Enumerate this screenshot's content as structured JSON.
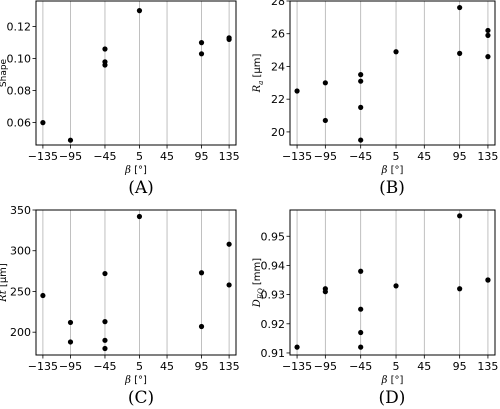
{
  "figure": {
    "panels": [
      "(A)",
      "(B)",
      "(C)",
      "(D)"
    ]
  },
  "chart_data": [
    {
      "type": "scatter",
      "panel_label": "(A)",
      "xlabel_symbol": "β",
      "xlabel_unit": " [°]",
      "ylabel_symbol": "",
      "ylabel_text": "Shape",
      "ylabel_unit": "",
      "ylabel_italic": false,
      "xticks": [
        -135,
        -95,
        -45,
        5,
        45,
        95,
        135
      ],
      "xtick_labels": [
        "−135",
        "−95",
        "−45",
        "5",
        "45",
        "95",
        "135"
      ],
      "xlim": [
        -145,
        145
      ],
      "ylim": [
        0.046,
        0.136
      ],
      "yticks": [
        0.06,
        0.08,
        0.1,
        0.12
      ],
      "ytick_labels": [
        "0.06",
        "0.08",
        "0.10",
        "0.12"
      ],
      "grid": "vertical",
      "points": [
        {
          "x": -135,
          "y": 0.06
        },
        {
          "x": -95,
          "y": 0.049
        },
        {
          "x": -45,
          "y": 0.106
        },
        {
          "x": -45,
          "y": 0.098
        },
        {
          "x": -45,
          "y": 0.096
        },
        {
          "x": 5,
          "y": 0.13
        },
        {
          "x": 95,
          "y": 0.11
        },
        {
          "x": 95,
          "y": 0.103
        },
        {
          "x": 135,
          "y": 0.113
        },
        {
          "x": 135,
          "y": 0.112
        }
      ]
    },
    {
      "type": "scatter",
      "panel_label": "(B)",
      "xlabel_symbol": "β",
      "xlabel_unit": " [°]",
      "ylabel_symbol": "R",
      "ylabel_sub": "a",
      "ylabel_text": "",
      "ylabel_unit": " [μm]",
      "ylabel_italic": true,
      "xticks": [
        -135,
        -95,
        -45,
        5,
        45,
        95,
        135
      ],
      "xtick_labels": [
        "−135",
        "−95",
        "−45",
        "5",
        "45",
        "95",
        "135"
      ],
      "xlim": [
        -145,
        145
      ],
      "ylim": [
        19.2,
        28.0
      ],
      "yticks": [
        20,
        22,
        24,
        26,
        28
      ],
      "ytick_labels": [
        "20",
        "22",
        "24",
        "26",
        "28"
      ],
      "grid": "vertical",
      "points": [
        {
          "x": -135,
          "y": 22.5
        },
        {
          "x": -95,
          "y": 23.0
        },
        {
          "x": -95,
          "y": 20.7
        },
        {
          "x": -45,
          "y": 23.5
        },
        {
          "x": -45,
          "y": 23.1
        },
        {
          "x": -45,
          "y": 21.5
        },
        {
          "x": -45,
          "y": 19.5
        },
        {
          "x": 5,
          "y": 24.9
        },
        {
          "x": 95,
          "y": 27.6
        },
        {
          "x": 95,
          "y": 24.8
        },
        {
          "x": 135,
          "y": 26.2
        },
        {
          "x": 135,
          "y": 25.9
        },
        {
          "x": 135,
          "y": 24.6
        }
      ]
    },
    {
      "type": "scatter",
      "panel_label": "(C)",
      "xlabel_symbol": "β",
      "xlabel_unit": " [°]",
      "ylabel_symbol": "Rt",
      "ylabel_sub": "",
      "ylabel_text": "",
      "ylabel_unit": " [μm]",
      "ylabel_italic": true,
      "xticks": [
        -135,
        -95,
        -45,
        5,
        45,
        95,
        135
      ],
      "xtick_labels": [
        "−135",
        "−95",
        "−45",
        "5",
        "45",
        "95",
        "135"
      ],
      "xlim": [
        -145,
        145
      ],
      "ylim": [
        172,
        350
      ],
      "yticks": [
        200,
        250,
        300,
        350
      ],
      "ytick_labels": [
        "200",
        "250",
        "300",
        "350"
      ],
      "grid": "vertical",
      "points": [
        {
          "x": -135,
          "y": 245
        },
        {
          "x": -95,
          "y": 212
        },
        {
          "x": -95,
          "y": 188
        },
        {
          "x": -45,
          "y": 272
        },
        {
          "x": -45,
          "y": 213
        },
        {
          "x": -45,
          "y": 190
        },
        {
          "x": -45,
          "y": 180
        },
        {
          "x": 5,
          "y": 342
        },
        {
          "x": 95,
          "y": 273
        },
        {
          "x": 95,
          "y": 207
        },
        {
          "x": 135,
          "y": 308
        },
        {
          "x": 135,
          "y": 258
        }
      ]
    },
    {
      "type": "scatter",
      "panel_label": "(D)",
      "xlabel_symbol": "β",
      "xlabel_unit": " [°]",
      "ylabel_symbol": "D",
      "ylabel_sub": "EQ",
      "ylabel_text": "",
      "ylabel_unit": " [mm]",
      "ylabel_italic": true,
      "xticks": [
        -135,
        -95,
        -45,
        5,
        45,
        95,
        135
      ],
      "xtick_labels": [
        "−135",
        "−95",
        "−45",
        "5",
        "45",
        "95",
        "135"
      ],
      "xlim": [
        -145,
        145
      ],
      "ylim": [
        0.9093,
        0.959
      ],
      "yticks": [
        0.91,
        0.92,
        0.93,
        0.94,
        0.95
      ],
      "ytick_labels": [
        "0.91",
        "0.92",
        "0.93",
        "0.94",
        "0.95"
      ],
      "grid": "vertical",
      "points": [
        {
          "x": -135,
          "y": 0.912
        },
        {
          "x": -95,
          "y": 0.932
        },
        {
          "x": -95,
          "y": 0.931
        },
        {
          "x": -45,
          "y": 0.938
        },
        {
          "x": -45,
          "y": 0.925
        },
        {
          "x": -45,
          "y": 0.917
        },
        {
          "x": -45,
          "y": 0.912
        },
        {
          "x": 5,
          "y": 0.933
        },
        {
          "x": 95,
          "y": 0.957
        },
        {
          "x": 95,
          "y": 0.932
        },
        {
          "x": 135,
          "y": 0.935
        },
        {
          "x": 135,
          "y": 0.935
        }
      ]
    }
  ]
}
